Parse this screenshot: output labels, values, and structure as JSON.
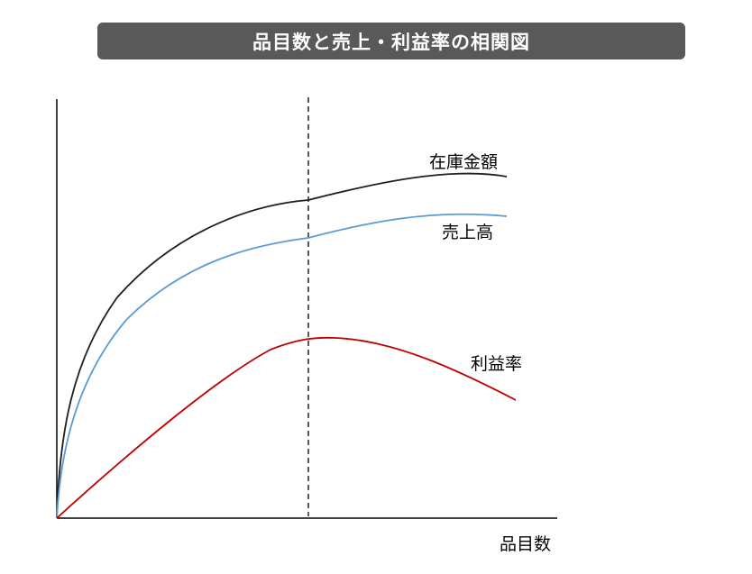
{
  "title": "品目数と売上・利益率の相関図",
  "x_axis_label": "品目数",
  "curves": [
    {
      "name": "在庫金額",
      "color": "#1f1f1f"
    },
    {
      "name": "売上高",
      "color": "#5b9bd5"
    },
    {
      "name": "利益率",
      "color": "#c00000"
    }
  ],
  "colors": {
    "title_bar": "#595959",
    "axis": "#000000",
    "reference_line": "#000000"
  }
}
